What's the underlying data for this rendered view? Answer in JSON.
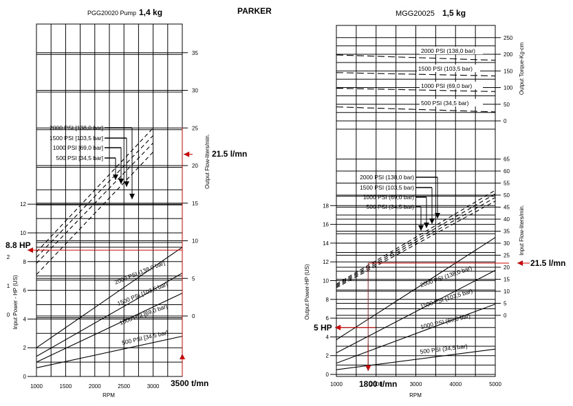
{
  "header": {
    "left_model": "PGG20020 Pump",
    "left_weight": "1,4 kg",
    "brand": "PARKER",
    "right_model": "MGG20025",
    "right_weight": "1,5 kg"
  },
  "colors": {
    "annotation": "#d00000",
    "line": "#000000"
  },
  "chart_data": [
    {
      "type": "line",
      "xlabel": "RPM",
      "x_ticks": [
        "1000",
        "1500",
        "2000",
        "2500",
        "3000"
      ],
      "xlim": [
        1000,
        3500
      ],
      "left_axis": {
        "label": "Input Power - HP (US)",
        "ticks": [
          "0",
          "2",
          "4",
          "6",
          "8",
          "10",
          "12"
        ],
        "kw_ticks": [
          "0",
          "1",
          "2"
        ]
      },
      "right_axis": {
        "label": "Output Flow-liters/min.",
        "ticks": [
          "0",
          "5",
          "10",
          "15",
          "20",
          "25",
          "30",
          "35"
        ]
      },
      "power_series": [
        {
          "name": "2000 PSI [138,0 bar]",
          "x": [
            1000,
            3500
          ],
          "y": [
            2.0,
            9.0
          ]
        },
        {
          "name": "1500 PSI [103,5 bar]",
          "x": [
            1000,
            3500
          ],
          "y": [
            1.4,
            7.2
          ]
        },
        {
          "name": "1000 PSI [69,0 bar]",
          "x": [
            1000,
            3500
          ],
          "y": [
            1.0,
            5.8
          ]
        },
        {
          "name": "500 PSI [34,5 bar]",
          "x": [
            1000,
            3500
          ],
          "y": [
            0.6,
            2.8
          ]
        }
      ],
      "flow_series": [
        {
          "name": "2000 PSI [138,0 bar]",
          "x": [
            1000,
            3000
          ],
          "y": [
            8.5,
            25.0
          ]
        },
        {
          "name": "1500 PSI [103,5 bar]",
          "x": [
            1000,
            3000
          ],
          "y": [
            7.8,
            24.0
          ]
        },
        {
          "name": "1000 PSI [69,0 bar]",
          "x": [
            1000,
            3000
          ],
          "y": [
            7.0,
            23.0
          ]
        },
        {
          "name": "500 PSI [34,5 bar]",
          "x": [
            1000,
            3000
          ],
          "y": [
            5.5,
            21.8
          ]
        }
      ],
      "flow_legend": [
        "2000 PSI [138,0 bar]",
        "1500 PSI [103,5 bar]",
        "1000 PSI [69,0 bar]",
        "500 PSI [34,5 bar]"
      ],
      "annotations": {
        "power": "8.8 HP",
        "flow": "21.5 l/mn",
        "speed": "3500 t/mn"
      },
      "marker": {
        "rpm": 3500,
        "hp": 8.8,
        "flow": 21.5
      }
    },
    {
      "type": "line",
      "xlabel": "RPM",
      "x_ticks": [
        "1000",
        "2000",
        "3000",
        "4000",
        "5000"
      ],
      "xlim": [
        1000,
        5000
      ],
      "left_axis": {
        "label": "Output Power-HP (US)",
        "ticks": [
          "0",
          "2",
          "4",
          "6",
          "8",
          "10",
          "12",
          "14",
          "16",
          "18"
        ]
      },
      "flow_axis": {
        "label": "Input Flow-liters/min.",
        "ticks": [
          "0",
          "5",
          "10",
          "15",
          "20",
          "25",
          "30",
          "35",
          "40",
          "45",
          "50",
          "55",
          "60",
          "65"
        ]
      },
      "torque_axis": {
        "label": "Output Torque-Kg-cm",
        "ticks": [
          "0",
          "50",
          "100",
          "150",
          "200",
          "250"
        ]
      },
      "power_series": [
        {
          "name": "2000 PSI (138,0 bar)",
          "x": [
            1000,
            5000
          ],
          "y": [
            3.7,
            14.6
          ]
        },
        {
          "name": "1500 PSI (103,5 bar)",
          "x": [
            1000,
            5000
          ],
          "y": [
            2.3,
            11.1
          ]
        },
        {
          "name": "1000 PSI (69,0 bar)",
          "x": [
            1000,
            5000
          ],
          "y": [
            1.2,
            7.5
          ]
        },
        {
          "name": "500 PSI (34,5 bar)",
          "x": [
            1000,
            5000
          ],
          "y": [
            0.5,
            2.7
          ]
        }
      ],
      "flow_series": [
        {
          "name": "2000 PSI (138,0 bar)",
          "x": [
            1000,
            5000
          ],
          "y": [
            13,
            52
          ]
        },
        {
          "name": "1500 PSI (103,5 bar)",
          "x": [
            1000,
            5000
          ],
          "y": [
            12.5,
            50.5
          ]
        },
        {
          "name": "1000 PSI (69,0 bar)",
          "x": [
            1000,
            5000
          ],
          "y": [
            12,
            49
          ]
        },
        {
          "name": "500 PSI (34,5 bar)",
          "x": [
            1000,
            5000
          ],
          "y": [
            11.5,
            47.5
          ]
        }
      ],
      "torque_series": [
        {
          "name": "2000 PSI (138,0 bar)",
          "x": [
            1000,
            5000
          ],
          "y": [
            198,
            182
          ]
        },
        {
          "name": "1500 PSI (103,5 bar)",
          "x": [
            1000,
            5000
          ],
          "y": [
            145,
            135
          ]
        },
        {
          "name": "1000 PSI (69,0 bar)",
          "x": [
            1000,
            5000
          ],
          "y": [
            98,
            88
          ]
        },
        {
          "name": "500 PSI (34,5 bar)",
          "x": [
            1000,
            5000
          ],
          "y": [
            42,
            27
          ]
        }
      ],
      "flow_legend": [
        "2000 PSI (138,0 bar)",
        "1500 PSI (103,5 bar)",
        "1000 PSI (69,0 bar)",
        "500 PSI (34,5 bar)"
      ],
      "annotations": {
        "power": "5 HP",
        "flow": "21.5 l/mn",
        "speed": "1800 t/mn"
      },
      "marker": {
        "rpm": 1800,
        "hp": 5,
        "flow": 21.5
      }
    }
  ]
}
